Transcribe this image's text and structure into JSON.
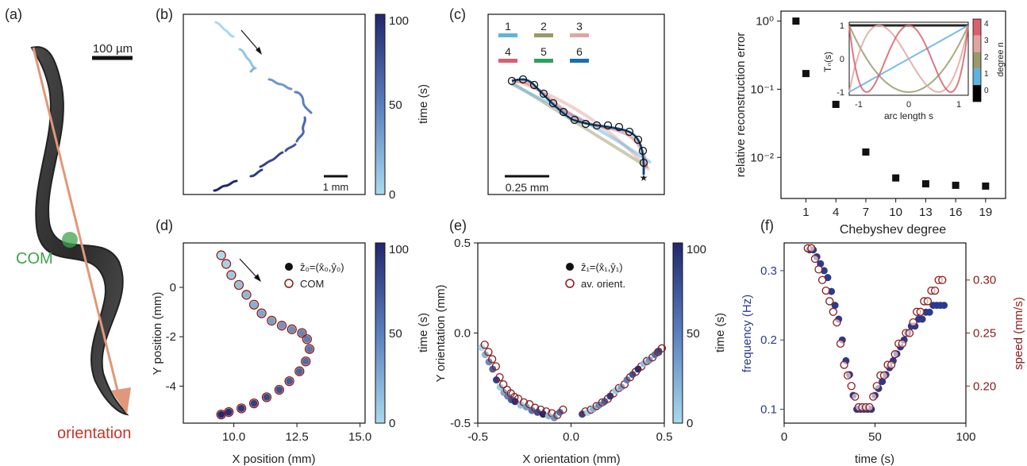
{
  "colors": {
    "time_light": "#a9d9ee",
    "time_dark": "#22276f",
    "com_green": "#3fa34d",
    "orient_arrow": "#e0977a",
    "orient_text": "#c0392b",
    "freq_blue": "#2b3a8f",
    "speed_red": "#8b1a1a",
    "cheb": [
      "#000000",
      "#5fb3e0",
      "#9a9a6a",
      "#e3a4a0",
      "#d9606f",
      "#2ea05a",
      "#1a6fb0"
    ]
  },
  "panel_a": {
    "label": "(a)",
    "scalebar": "100 µm",
    "com_label": "COM",
    "orientation_label": "orientation"
  },
  "panel_b": {
    "label": "(b)",
    "scalebar": "1 mm",
    "colorbar": {
      "label": "time (s)",
      "ticks": [
        "100",
        "50",
        "0"
      ]
    }
  },
  "panel_c": {
    "label": "(c)",
    "scalebar": "0.25 mm",
    "legend": [
      "1",
      "2",
      "3",
      "4",
      "5",
      "6"
    ]
  },
  "chart_data": [
    {
      "panel": "d",
      "type": "scatter",
      "label": "(d)",
      "xlabel": "X position (mm)",
      "ylabel": "Y position (mm)",
      "xlim": [
        8,
        15.2
      ],
      "ylim": [
        -5.5,
        1.8
      ],
      "xticks": [
        "10.0",
        "12.5",
        "15.0"
      ],
      "yticks": [
        "0",
        "-2",
        "-4"
      ],
      "legend": [
        "ẑ₀=(x̂₀,ŷ₀)",
        "COM"
      ],
      "colorbar": {
        "label": "time (s)",
        "ticks": [
          "100",
          "50",
          "0"
        ]
      },
      "x": [
        9.5,
        9.7,
        9.9,
        10.2,
        10.5,
        10.8,
        11.1,
        11.5,
        11.9,
        12.3,
        12.7,
        12.9,
        13.0,
        12.85,
        12.6,
        12.2,
        11.8,
        11.3,
        10.8,
        10.3,
        9.8,
        9.5
      ],
      "y": [
        1.3,
        0.95,
        0.5,
        0.1,
        -0.3,
        -0.7,
        -1.05,
        -1.35,
        -1.55,
        -1.7,
        -1.85,
        -2.1,
        -2.5,
        -3.0,
        -3.4,
        -3.8,
        -4.15,
        -4.45,
        -4.7,
        -4.9,
        -5.05,
        -5.15
      ]
    },
    {
      "panel": "e",
      "type": "scatter",
      "label": "(e)",
      "xlabel": "X orientation (mm)",
      "ylabel": "Y orientation (mm)",
      "xlim": [
        -0.5,
        0.5
      ],
      "ylim": [
        -0.5,
        0.5
      ],
      "xticks": [
        "-0.5",
        "0.0",
        "0.5"
      ],
      "yticks": [
        "0.5",
        "0.0",
        "-0.5"
      ],
      "legend": [
        "ẑ₁=(x̂₁,ŷ₁)",
        "av. orient."
      ],
      "colorbar": {
        "label": "time (s)",
        "ticks": [
          "100",
          "50",
          "0"
        ]
      },
      "x": [
        -0.48,
        -0.46,
        -0.44,
        -0.42,
        -0.4,
        -0.38,
        -0.36,
        -0.34,
        -0.32,
        -0.3,
        -0.27,
        -0.24,
        -0.21,
        -0.18,
        -0.15,
        -0.12,
        -0.09,
        -0.06,
        0.06,
        0.09,
        0.12,
        0.15,
        0.18,
        0.21,
        0.24,
        0.27,
        0.3,
        0.33,
        0.36,
        0.39,
        0.42,
        0.45,
        0.47
      ],
      "y": [
        -0.08,
        -0.12,
        -0.16,
        -0.2,
        -0.26,
        -0.3,
        -0.33,
        -0.35,
        -0.37,
        -0.38,
        -0.4,
        -0.41,
        -0.43,
        -0.44,
        -0.45,
        -0.46,
        -0.47,
        -0.44,
        -0.45,
        -0.44,
        -0.42,
        -0.4,
        -0.38,
        -0.35,
        -0.32,
        -0.3,
        -0.26,
        -0.23,
        -0.2,
        -0.17,
        -0.15,
        -0.12,
        -0.1
      ]
    },
    {
      "panel": "f",
      "type": "scatter",
      "label": "(f)",
      "xlabel": "time (s)",
      "ylabel_left": "frequency (Hz)",
      "ylabel_right": "speed (mm/s)",
      "xlim": [
        0,
        100
      ],
      "ylim_left": [
        0.08,
        0.34
      ],
      "ylim_right": [
        0.165,
        0.335
      ],
      "xticks": [
        "0",
        "50",
        "100"
      ],
      "yticks_left": [
        "0.3",
        "0.2",
        "0.1"
      ],
      "yticks_right": [
        "0.30",
        "0.25",
        "0.20"
      ],
      "series": [
        {
          "name": "frequency",
          "x": [
            14,
            16,
            18,
            20,
            22,
            24,
            26,
            28,
            30,
            32,
            34,
            36,
            38,
            40,
            42,
            44,
            46,
            48,
            50,
            52,
            54,
            56,
            58,
            60,
            62,
            64,
            66,
            68,
            70,
            72,
            74,
            76,
            78,
            80,
            82,
            84,
            86,
            88
          ],
          "values": [
            0.33,
            0.33,
            0.32,
            0.31,
            0.3,
            0.29,
            0.27,
            0.25,
            0.23,
            0.2,
            0.17,
            0.15,
            0.12,
            0.1,
            0.1,
            0.1,
            0.1,
            0.1,
            0.12,
            0.13,
            0.14,
            0.15,
            0.16,
            0.17,
            0.18,
            0.19,
            0.2,
            0.21,
            0.22,
            0.22,
            0.23,
            0.23,
            0.24,
            0.24,
            0.25,
            0.25,
            0.25,
            0.25
          ]
        },
        {
          "name": "speed",
          "x": [
            13,
            15,
            17,
            19,
            21,
            23,
            25,
            27,
            29,
            31,
            33,
            35,
            37,
            39,
            41,
            43,
            45,
            47,
            49,
            51,
            53,
            55,
            57,
            59,
            61,
            63,
            65,
            67,
            69,
            71,
            73,
            75,
            77,
            79,
            81,
            83,
            85,
            87
          ],
          "values": [
            0.33,
            0.33,
            0.32,
            0.31,
            0.3,
            0.29,
            0.28,
            0.27,
            0.26,
            0.24,
            0.22,
            0.21,
            0.2,
            0.19,
            0.18,
            0.18,
            0.18,
            0.18,
            0.19,
            0.2,
            0.21,
            0.21,
            0.22,
            0.22,
            0.23,
            0.24,
            0.24,
            0.25,
            0.25,
            0.26,
            0.27,
            0.27,
            0.28,
            0.28,
            0.29,
            0.29,
            0.3,
            0.3
          ]
        }
      ]
    },
    {
      "panel": "g",
      "type": "scatter",
      "xlabel": "Chebyshev degree",
      "ylabel": "relative reconstruction error",
      "yscale": "log",
      "ylim": [
        0.0025,
        1.4
      ],
      "xlim": [
        -1.5,
        21
      ],
      "xticks": [
        "1",
        "4",
        "7",
        "10",
        "13",
        "16",
        "19"
      ],
      "yticks": [
        "10⁰",
        "10⁻¹",
        "10⁻²"
      ],
      "x": [
        0,
        1,
        4,
        7,
        10,
        13,
        16,
        19
      ],
      "values": [
        1.0,
        0.17,
        0.06,
        0.012,
        0.005,
        0.0041,
        0.0039,
        0.0038
      ],
      "inset": {
        "type": "line",
        "xlabel": "arc length s",
        "ylabel": "Tₙ(s)",
        "xticks": [
          "-1",
          "0",
          "1"
        ],
        "yticks": [
          "1",
          "0",
          "-1"
        ],
        "colorbar": {
          "label": "degree n",
          "ticks": [
            "4",
            "3",
            "2",
            "1",
            "0"
          ]
        },
        "degrees": [
          0,
          1,
          2,
          3,
          4
        ]
      }
    }
  ]
}
